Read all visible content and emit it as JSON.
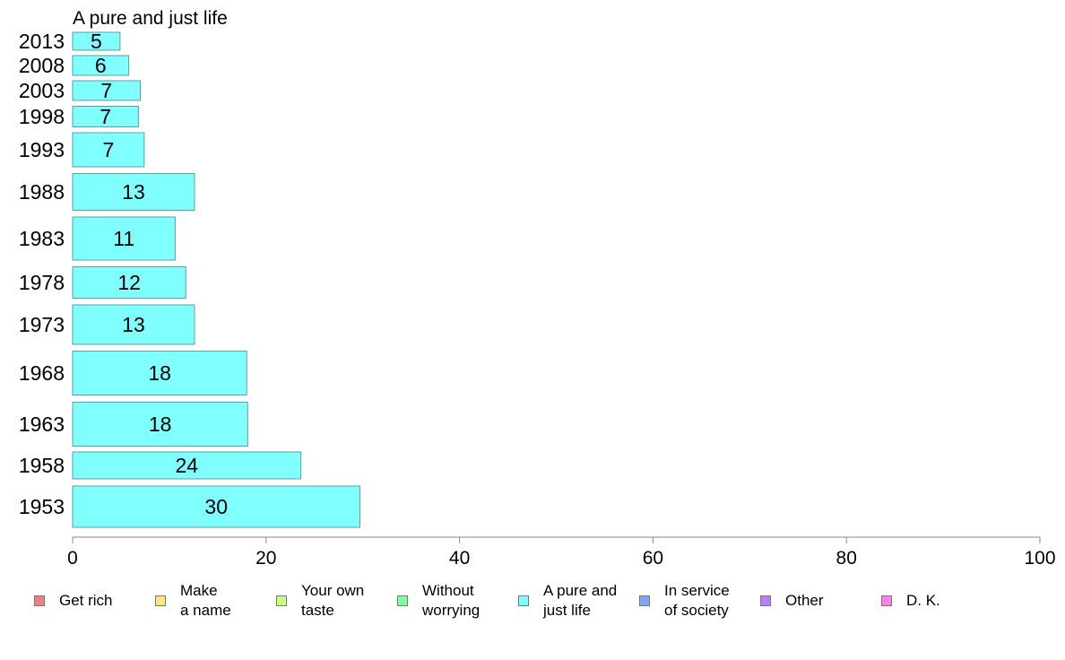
{
  "chart_data": {
    "type": "bar",
    "orientation": "horizontal",
    "title": "A pure and just life",
    "categories": [
      "2013",
      "2008",
      "2003",
      "1998",
      "1993",
      "1988",
      "1983",
      "1978",
      "1973",
      "1968",
      "1963",
      "1958",
      "1953"
    ],
    "values": [
      5,
      6,
      7,
      7,
      7,
      13,
      11,
      12,
      13,
      18,
      18,
      24,
      30
    ],
    "bar_widths": [
      4.9,
      5.8,
      7.0,
      6.8,
      7.4,
      12.6,
      10.6,
      11.7,
      12.6,
      18.0,
      18.1,
      23.6,
      29.7
    ],
    "xlim": [
      0,
      100
    ],
    "xticks": [
      0,
      20,
      40,
      60,
      80,
      100
    ],
    "grid": false,
    "bar_color": "#80ffff",
    "bar_stroke": "#5f9ea0",
    "legend_position": "bottom",
    "legend": [
      {
        "label": "Get rich",
        "color": "#f08080"
      },
      {
        "label": "Make\na name",
        "color": "#ffe680"
      },
      {
        "label": "Your own\ntaste",
        "color": "#ccff80"
      },
      {
        "label": "Without\nworrying",
        "color": "#80ff9f"
      },
      {
        "label": "A pure and\njust life",
        "color": "#80ffff"
      },
      {
        "label": "In service\nof society",
        "color": "#80a6f2"
      },
      {
        "label": "Other",
        "color": "#b380ff"
      },
      {
        "label": "D. K.",
        "color": "#ff80e6"
      }
    ]
  }
}
